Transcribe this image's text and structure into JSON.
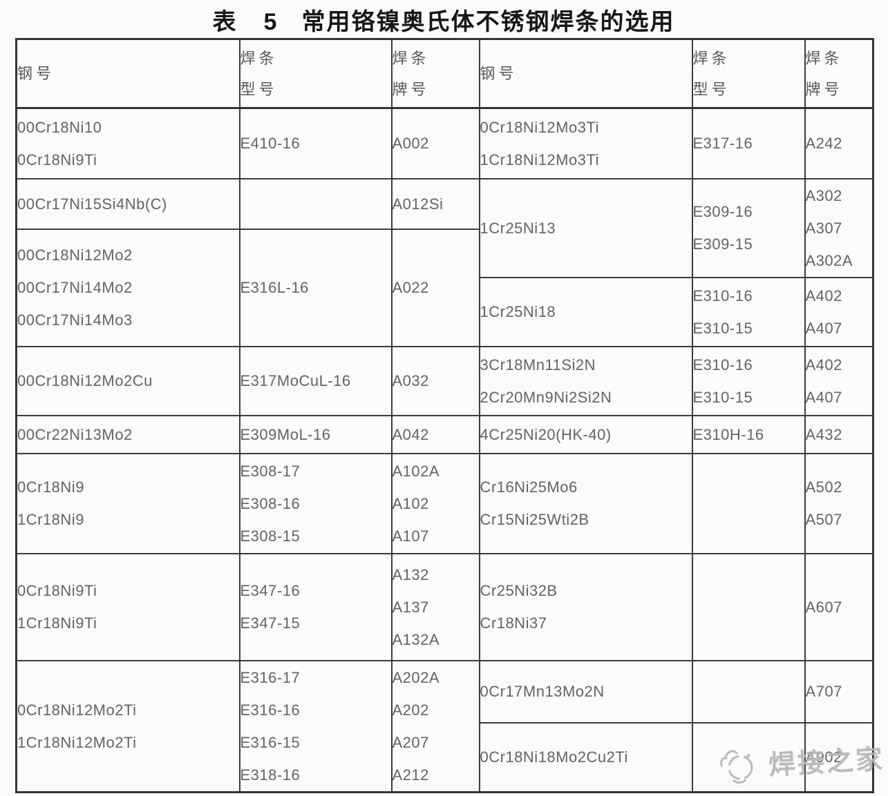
{
  "title": {
    "prefix": "表",
    "number": "5",
    "text": "常用铬镍奥氏体不锈钢焊条的选用"
  },
  "headers": {
    "steel": [
      "钢号"
    ],
    "rod_model": [
      "焊条",
      "型号"
    ],
    "rod_brand": [
      "焊条",
      "牌号"
    ]
  },
  "cells": {
    "r1_left": {
      "steel": [
        "00Cr18Ni10",
        "0Cr18Ni9Ti"
      ],
      "model": [
        "E410-16"
      ],
      "brand": [
        "A002"
      ]
    },
    "r1_right": {
      "steel": [
        "0Cr18Ni12Mo3Ti",
        "1Cr18Ni12Mo3Ti"
      ],
      "model": [
        "E317-16"
      ],
      "brand": [
        "A242"
      ]
    },
    "r2_left": {
      "steel": [
        "00Cr17Ni15Si4Nb(C)"
      ],
      "model": [],
      "brand": [
        "A012Si"
      ]
    },
    "r2_right": {
      "steel": [
        "1Cr25Ni13"
      ],
      "model": [
        "E309-16",
        "E309-15"
      ],
      "brand": [
        "A302",
        "A307",
        "A302A"
      ]
    },
    "r3_left": {
      "steel": [
        "00Cr18Ni12Mo2",
        "00Cr17Ni14Mo2",
        "00Cr17Ni14Mo3"
      ],
      "model": [
        "E316L-16"
      ],
      "brand": [
        "A022"
      ]
    },
    "r3_right": {
      "steel": [
        "1Cr25Ni18"
      ],
      "model": [
        "E310-16",
        "E310-15"
      ],
      "brand": [
        "A402",
        "A407"
      ]
    },
    "r4_left": {
      "steel": [
        "00Cr18Ni12Mo2Cu"
      ],
      "model": [
        "E317MoCuL-16"
      ],
      "brand": [
        "A032"
      ]
    },
    "r4_right": {
      "steel": [
        "3Cr18Mn11Si2N",
        "2Cr20Mn9Ni2Si2N"
      ],
      "model": [
        "E310-16",
        "E310-15"
      ],
      "brand": [
        "A402",
        "A407"
      ]
    },
    "r5_left": {
      "steel": [
        "00Cr22Ni13Mo2"
      ],
      "model": [
        "E309MoL-16"
      ],
      "brand": [
        "A042"
      ]
    },
    "r5_right": {
      "steel": [
        "4Cr25Ni20(HK-40)"
      ],
      "model": [
        "E310H-16"
      ],
      "brand": [
        "A432"
      ]
    },
    "r6_left": {
      "steel": [
        "0Cr18Ni9",
        "1Cr18Ni9"
      ],
      "model": [
        "E308-17",
        "E308-16",
        "E308-15"
      ],
      "brand": [
        "A102A",
        "A102",
        "A107"
      ]
    },
    "r6_right": {
      "steel": [
        "Cr16Ni25Mo6",
        "Cr15Ni25Wti2B"
      ],
      "model": [],
      "brand": [
        "A502",
        "A507"
      ]
    },
    "r7_left": {
      "steel": [
        "0Cr18Ni9Ti",
        "1Cr18Ni9Ti"
      ],
      "model": [
        "E347-16",
        "E347-15"
      ],
      "brand": [
        "A132",
        "A137",
        "A132A"
      ]
    },
    "r7_right": {
      "steel": [
        "Cr25Ni32B",
        "Cr18Ni37"
      ],
      "model": [],
      "brand": [
        "A607"
      ]
    },
    "r8_left": {
      "steel": [
        "0Cr18Ni12Mo2Ti",
        "1Cr18Ni12Mo2Ti"
      ],
      "model": [
        "E316-17",
        "E316-16",
        "E316-15",
        "E318-16"
      ],
      "brand": [
        "A202A",
        "A202",
        "A207",
        "A212"
      ]
    },
    "r8_right": {
      "steel": [
        "0Cr17Mn13Mo2N"
      ],
      "model": [],
      "brand": [
        "A707"
      ]
    },
    "r9_right": {
      "steel": [
        "0Cr18Ni18Mo2Cu2Ti"
      ],
      "model": [],
      "brand": [
        "A902"
      ]
    }
  },
  "watermark": {
    "text": "焊接之家"
  },
  "colors": {
    "background": "#fbfbfb",
    "border": "#3b3b3b",
    "cell_text": "#636363",
    "title_text": "#161616",
    "watermark": "#b6b6b6"
  }
}
